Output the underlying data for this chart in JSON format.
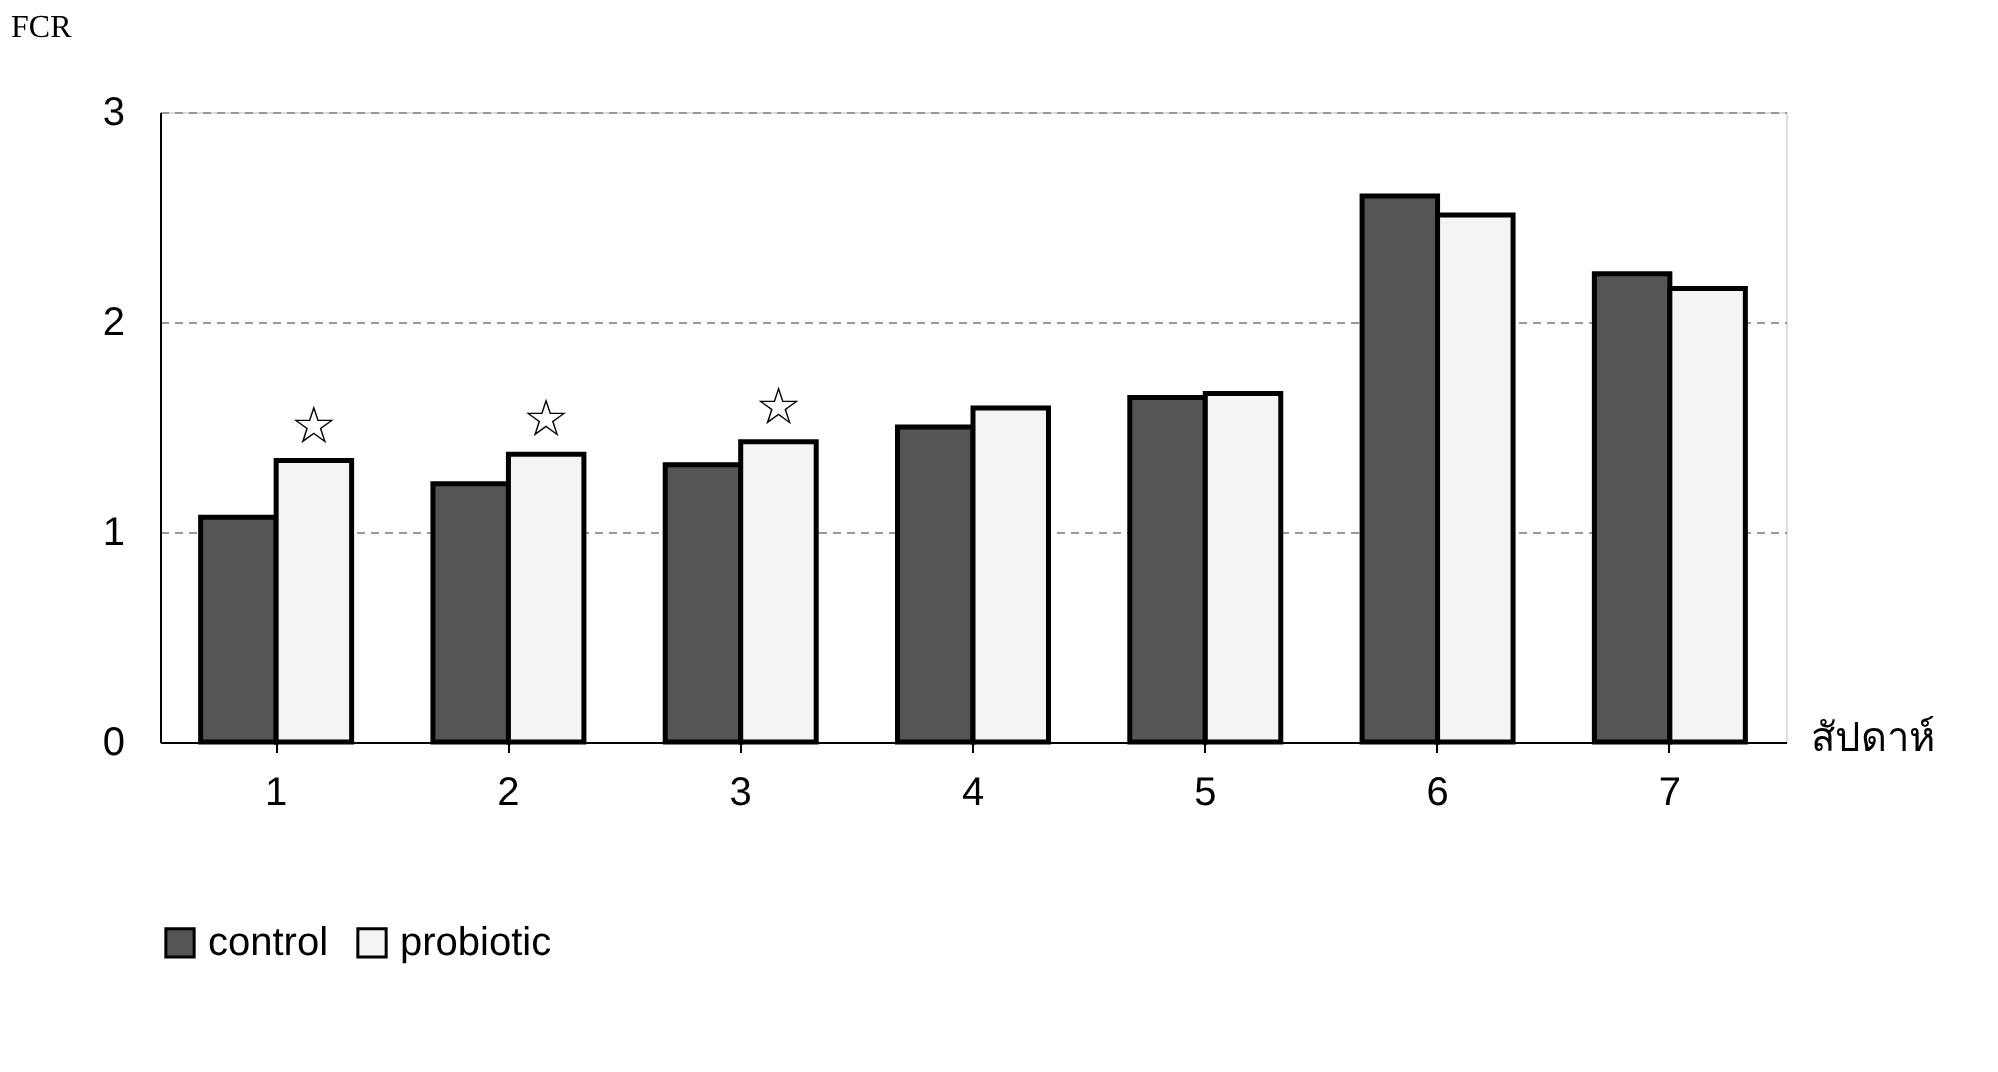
{
  "chart_data": {
    "type": "bar",
    "ylabel": "FCR",
    "xlabel": "สัปดาห์",
    "categories": [
      "1",
      "2",
      "3",
      "4",
      "5",
      "6",
      "7"
    ],
    "series": [
      {
        "name": "control",
        "color": "#555555",
        "values": [
          1.07,
          1.23,
          1.32,
          1.5,
          1.64,
          2.6,
          2.23
        ]
      },
      {
        "name": "probiotic",
        "color": "#f4f4f4",
        "values": [
          1.34,
          1.37,
          1.43,
          1.59,
          1.66,
          2.51,
          2.16
        ]
      }
    ],
    "ylim": [
      0,
      3
    ],
    "yticks": [
      0,
      1,
      2,
      3
    ],
    "grid": "y",
    "legend": "bottom",
    "annotations": [
      {
        "text": "☆",
        "x": "1",
        "y": 1.34
      },
      {
        "text": "☆",
        "x": "2",
        "y": 1.37
      },
      {
        "text": "☆",
        "x": "3",
        "y": 1.43
      }
    ]
  }
}
